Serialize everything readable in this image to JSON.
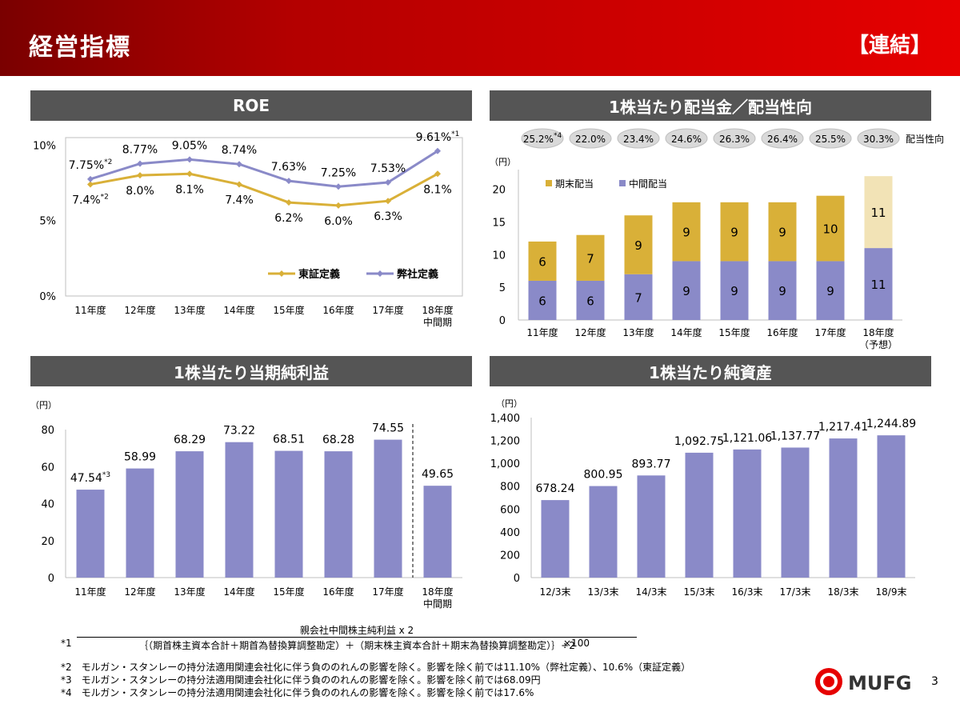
{
  "header": {
    "title": "経営指標",
    "tag": "【連結】"
  },
  "panels": {
    "roe": "ROE",
    "dividend": "1株当たり配当金／配当性向",
    "eps": "1株当たり当期純利益",
    "bps": "1株当たり純資産"
  },
  "chart_data": [
    {
      "id": "roe",
      "type": "line",
      "categories": [
        "11年度",
        "12年度",
        "13年度",
        "14年度",
        "15年度",
        "16年度",
        "17年度",
        "18年度\n中間期"
      ],
      "series": [
        {
          "name": "東証定義",
          "values": [
            7.4,
            8.0,
            8.1,
            7.4,
            6.2,
            6.0,
            6.3,
            8.1
          ],
          "labels": [
            "7.4%",
            "8.0%",
            "8.1%",
            "7.4%",
            "6.2%",
            "6.0%",
            "6.3%",
            "8.1%"
          ],
          "color": "#d9b038"
        },
        {
          "name": "弊社定義",
          "values": [
            7.75,
            8.77,
            9.05,
            8.74,
            7.63,
            7.25,
            7.53,
            9.61
          ],
          "labels": [
            "7.75%",
            "8.77%",
            "9.05%",
            "8.74%",
            "7.63%",
            "7.25%",
            "7.53%",
            "9.61%"
          ],
          "color": "#8a8ac8"
        }
      ],
      "annotations": {
        "tosho_0": "*2",
        "heisha_0": "*2",
        "heisha_7": "*1"
      },
      "yticks": [
        "0%",
        "5%",
        "10%"
      ],
      "ylim": [
        0,
        10.5
      ],
      "legend": "bottom-right"
    },
    {
      "id": "dividend",
      "type": "bar",
      "stacked": true,
      "unit": "（円）",
      "categories": [
        "11年度",
        "12年度",
        "13年度",
        "14年度",
        "15年度",
        "16年度",
        "17年度",
        "18年度\n（予想）"
      ],
      "series": [
        {
          "name": "中間配当",
          "values": [
            6,
            6,
            7,
            9,
            9,
            9,
            9,
            11
          ],
          "color": "#8a8ac8"
        },
        {
          "name": "期末配当",
          "values": [
            6,
            7,
            9,
            9,
            9,
            9,
            10,
            11
          ],
          "color": "#d9b038"
        }
      ],
      "forecast_colors": {
        "interim": "#8a8ac8",
        "final": "#f2e3b6"
      },
      "payout_ratio": [
        "25.2%",
        "22.0%",
        "23.4%",
        "24.6%",
        "26.3%",
        "26.4%",
        "25.5%",
        "30.3%"
      ],
      "payout_note_0": "*4",
      "payout_label": "配当性向",
      "yticks": [
        "0",
        "5",
        "10",
        "15",
        "20"
      ],
      "ylim": [
        0,
        23
      ],
      "legend": "top-left"
    },
    {
      "id": "eps",
      "type": "bar",
      "unit": "（円）",
      "categories": [
        "11年度",
        "12年度",
        "13年度",
        "14年度",
        "15年度",
        "16年度",
        "17年度",
        "18年度\n中間期"
      ],
      "values": [
        47.54,
        58.99,
        68.29,
        73.22,
        68.51,
        68.28,
        74.55,
        49.65
      ],
      "labels": [
        "47.54",
        "58.99",
        "68.29",
        "73.22",
        "68.51",
        "68.28",
        "74.55",
        "49.65"
      ],
      "label_note_0": "*3",
      "color": "#8a8ac8",
      "yticks": [
        "0",
        "20",
        "40",
        "60",
        "80"
      ],
      "ylim": [
        0,
        80
      ]
    },
    {
      "id": "bps",
      "type": "bar",
      "unit": "（円）",
      "categories": [
        "12/3末",
        "13/3末",
        "14/3末",
        "15/3末",
        "16/3末",
        "17/3末",
        "18/3末",
        "18/9末"
      ],
      "values": [
        678.24,
        800.95,
        893.77,
        1092.75,
        1121.06,
        1137.77,
        1217.41,
        1244.89
      ],
      "labels": [
        "678.24",
        "800.95",
        "893.77",
        "1,092.75",
        "1,121.06",
        "1,137.77",
        "1,217.41",
        "1,244.89"
      ],
      "color": "#8a8ac8",
      "yticks": [
        "0",
        "200",
        "400",
        "600",
        "800",
        "1,000",
        "1,200",
        "1,400"
      ],
      "ylim": [
        0,
        1400
      ]
    }
  ],
  "footnotes": {
    "n1_mark": "*1",
    "n1_numerator": "親会社中間株主純利益 x 2",
    "n1_denominator": "｛（期首株主資本合計＋期首為替換算調整勘定）＋（期末株主資本合計＋期末為替換算調整勘定）｝÷2",
    "n1_times": "×100",
    "n2": "*2　モルガン・スタンレーの持分法適用関連会社化に伴う負ののれんの影響を除く。影響を除く前では11.10%（弊社定義）、10.6%（東証定義）",
    "n3": "*3　モルガン・スタンレーの持分法適用関連会社化に伴う負ののれんの影響を除く。影響を除く前では68.09円",
    "n4": "*4　モルガン・スタンレーの持分法適用関連会社化に伴う負ののれんの影響を除く。影響を除く前では17.6%"
  },
  "logo": {
    "text": "MUFG",
    "color": "#e60000"
  },
  "page_number": "3"
}
